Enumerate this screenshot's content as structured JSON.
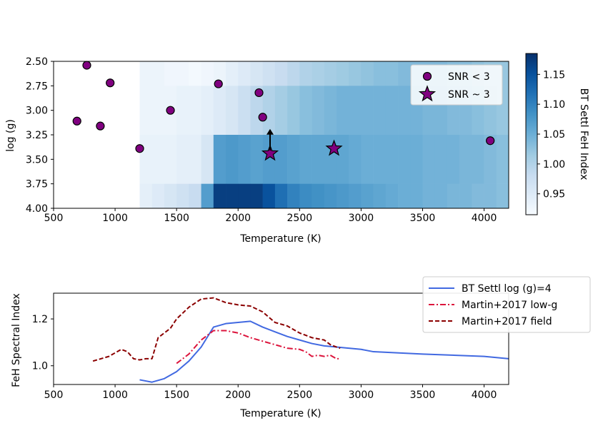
{
  "chart_data": [
    {
      "type": "heatmap",
      "xlabel": "Temperature (K)",
      "ylabel": "log (g)",
      "xlim": [
        500,
        4200
      ],
      "ylim": [
        2.5,
        4.0
      ],
      "y_inverted": true,
      "xticks": [
        500,
        1000,
        1500,
        2000,
        2500,
        3000,
        3500,
        4000
      ],
      "xtick_labels": [
        "500",
        "1000",
        "1500",
        "2000",
        "2500",
        "3000",
        "3500",
        "4000"
      ],
      "yticks": [
        2.5,
        2.75,
        3.0,
        3.25,
        3.5,
        3.75,
        4.0
      ],
      "ytick_labels": [
        "2.50",
        "2.75",
        "3.00",
        "3.25",
        "3.50",
        "3.75",
        "4.00"
      ],
      "heatmap_temperatures": [
        1200,
        1300,
        1400,
        1500,
        1600,
        1700,
        1800,
        1900,
        2000,
        2100,
        2200,
        2300,
        2400,
        2500,
        2600,
        2700,
        2800,
        2900,
        3000,
        3100,
        3200,
        3300,
        3400,
        3500,
        3600,
        3700,
        3800,
        3900,
        4000,
        4100
      ],
      "heatmap_rows": [
        {
          "logg": 2.5,
          "values": [
            0.93,
            0.93,
            0.925,
            0.925,
            0.92,
            0.925,
            0.93,
            0.94,
            0.95,
            0.96,
            0.97,
            0.98,
            0.99,
            1.0,
            1.005,
            1.01,
            1.015,
            1.02,
            1.025,
            1.03,
            1.03,
            1.035,
            1.035,
            1.035,
            1.035,
            1.03,
            1.03,
            1.025,
            1.02,
            1.02
          ]
        },
        {
          "logg": 3.0,
          "values": [
            0.93,
            0.93,
            0.93,
            0.935,
            0.935,
            0.94,
            0.95,
            0.96,
            0.975,
            0.99,
            1.0,
            1.01,
            1.02,
            1.03,
            1.035,
            1.04,
            1.045,
            1.045,
            1.045,
            1.045,
            1.045,
            1.045,
            1.045,
            1.04,
            1.04,
            1.035,
            1.035,
            1.03,
            1.025,
            1.02
          ]
        },
        {
          "logg": 3.5,
          "values": [
            0.935,
            0.935,
            0.935,
            0.94,
            0.94,
            0.96,
            1.07,
            1.075,
            1.07,
            1.065,
            1.07,
            1.07,
            1.065,
            1.06,
            1.06,
            1.06,
            1.06,
            1.055,
            1.05,
            1.05,
            1.05,
            1.05,
            1.05,
            1.045,
            1.045,
            1.045,
            1.04,
            1.04,
            1.035,
            1.03
          ]
        },
        {
          "logg": 4.0,
          "values": [
            0.94,
            0.95,
            0.96,
            0.97,
            0.98,
            1.07,
            1.17,
            1.17,
            1.17,
            1.17,
            1.15,
            1.12,
            1.1,
            1.09,
            1.085,
            1.08,
            1.075,
            1.07,
            1.065,
            1.06,
            1.055,
            1.05,
            1.05,
            1.045,
            1.045,
            1.04,
            1.04,
            1.035,
            1.035,
            1.03
          ]
        }
      ],
      "colorbar": {
        "label": "BT Settl FeH Index",
        "range": [
          0.915,
          1.185
        ],
        "ticks": [
          0.95,
          1.0,
          1.05,
          1.1,
          1.15
        ],
        "tick_labels": [
          "0.95",
          "1.00",
          "1.05",
          "1.10",
          "1.15"
        ],
        "colormap": "Blues",
        "color_low": "#f7fbff",
        "color_high": "#08306b"
      },
      "series": [
        {
          "name": "SNR < 3",
          "marker": "circle",
          "color": "#800080",
          "points": [
            [
              770,
              2.54
            ],
            [
              960,
              2.72
            ],
            [
              690,
              3.11
            ],
            [
              880,
              3.16
            ],
            [
              1450,
              3.0
            ],
            [
              1200,
              3.39
            ],
            [
              1840,
              2.73
            ],
            [
              2170,
              2.82
            ],
            [
              2200,
              3.07
            ],
            [
              4050,
              3.31
            ]
          ]
        },
        {
          "name": "SNR ~ 3",
          "marker": "star",
          "color": "#800080",
          "points": [
            [
              2260,
              3.44
            ],
            [
              2780,
              3.39
            ]
          ]
        }
      ],
      "annotations": [
        {
          "type": "arrow",
          "x": 2260,
          "from_logg": 3.41,
          "to_logg": 3.19
        }
      ],
      "legend": {
        "position": "top-right",
        "labels": [
          "SNR < 3",
          "SNR ~ 3"
        ]
      }
    },
    {
      "type": "line",
      "xlabel": "Temperature (K)",
      "ylabel": "FeH Spectral Index",
      "xlim": [
        500,
        4200
      ],
      "ylim": [
        0.92,
        1.31
      ],
      "xticks": [
        500,
        1000,
        1500,
        2000,
        2500,
        3000,
        3500,
        4000
      ],
      "xtick_labels": [
        "500",
        "1000",
        "1500",
        "2000",
        "2500",
        "3000",
        "3500",
        "4000"
      ],
      "yticks": [
        1.0,
        1.2
      ],
      "ytick_labels": [
        "1.0",
        "1.2"
      ],
      "series": [
        {
          "name": "BT Settl log (g)=4",
          "color": "#4169e1",
          "style": "solid",
          "points": [
            [
              1200,
              0.94
            ],
            [
              1300,
              0.93
            ],
            [
              1400,
              0.945
            ],
            [
              1500,
              0.975
            ],
            [
              1600,
              1.02
            ],
            [
              1700,
              1.08
            ],
            [
              1800,
              1.165
            ],
            [
              1900,
              1.18
            ],
            [
              2000,
              1.185
            ],
            [
              2100,
              1.19
            ],
            [
              2200,
              1.165
            ],
            [
              2300,
              1.145
            ],
            [
              2400,
              1.125
            ],
            [
              2500,
              1.11
            ],
            [
              2600,
              1.095
            ],
            [
              2700,
              1.085
            ],
            [
              2800,
              1.08
            ],
            [
              2900,
              1.075
            ],
            [
              3000,
              1.07
            ],
            [
              3100,
              1.06
            ],
            [
              3500,
              1.05
            ],
            [
              4000,
              1.04
            ],
            [
              4200,
              1.03
            ]
          ]
        },
        {
          "name": "Martin+2017 low-g",
          "color": "#dc143c",
          "style": "dashdot",
          "points": [
            [
              1500,
              1.01
            ],
            [
              1600,
              1.05
            ],
            [
              1700,
              1.11
            ],
            [
              1800,
              1.15
            ],
            [
              1900,
              1.15
            ],
            [
              2000,
              1.14
            ],
            [
              2100,
              1.12
            ],
            [
              2200,
              1.105
            ],
            [
              2300,
              1.09
            ],
            [
              2400,
              1.075
            ],
            [
              2500,
              1.07
            ],
            [
              2550,
              1.06
            ],
            [
              2600,
              1.04
            ],
            [
              2650,
              1.045
            ],
            [
              2700,
              1.04
            ],
            [
              2750,
              1.045
            ],
            [
              2800,
              1.03
            ],
            [
              2830,
              1.03
            ]
          ]
        },
        {
          "name": "Martin+2017 field",
          "color": "#8b0000",
          "style": "dashed",
          "points": [
            [
              820,
              1.02
            ],
            [
              950,
              1.04
            ],
            [
              1050,
              1.07
            ],
            [
              1100,
              1.06
            ],
            [
              1150,
              1.03
            ],
            [
              1200,
              1.025
            ],
            [
              1250,
              1.03
            ],
            [
              1300,
              1.03
            ],
            [
              1350,
              1.12
            ],
            [
              1450,
              1.16
            ],
            [
              1500,
              1.2
            ],
            [
              1600,
              1.25
            ],
            [
              1700,
              1.285
            ],
            [
              1800,
              1.29
            ],
            [
              1900,
              1.27
            ],
            [
              2000,
              1.26
            ],
            [
              2100,
              1.255
            ],
            [
              2200,
              1.23
            ],
            [
              2300,
              1.185
            ],
            [
              2400,
              1.17
            ],
            [
              2500,
              1.14
            ],
            [
              2600,
              1.12
            ],
            [
              2700,
              1.11
            ],
            [
              2750,
              1.09
            ],
            [
              2800,
              1.08
            ],
            [
              2830,
              1.075
            ]
          ]
        }
      ],
      "legend": {
        "position": "top-right",
        "labels": [
          "BT Settl log (g)=4",
          "Martin+2017 low-g",
          "Martin+2017 field"
        ]
      }
    }
  ]
}
